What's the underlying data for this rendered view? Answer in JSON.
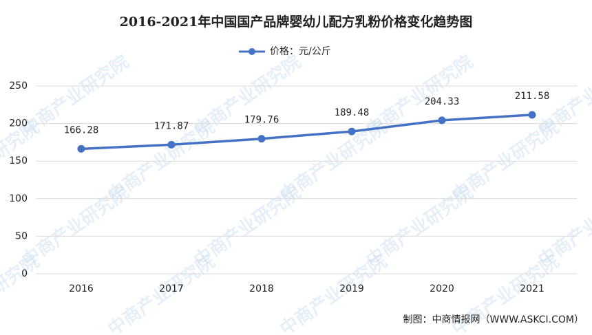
{
  "chart_data": {
    "type": "line",
    "title": "2016-2021年中国国产品牌婴幼儿配方乳粉价格变化趋势图",
    "categories": [
      "2016",
      "2017",
      "2018",
      "2019",
      "2020",
      "2021"
    ],
    "series": [
      {
        "name": "价格：元/公斤",
        "color": "#4472c4",
        "values": [
          166.28,
          171.87,
          179.76,
          189.48,
          204.33,
          211.58
        ]
      }
    ],
    "ylim": [
      0,
      250
    ],
    "yticks": [
      0,
      50,
      100,
      150,
      200,
      250
    ],
    "grid": true,
    "legend": "top",
    "source": "制图：中商情报网（WWW.ASKCI.COM）",
    "watermark": "中商产业研究院"
  }
}
